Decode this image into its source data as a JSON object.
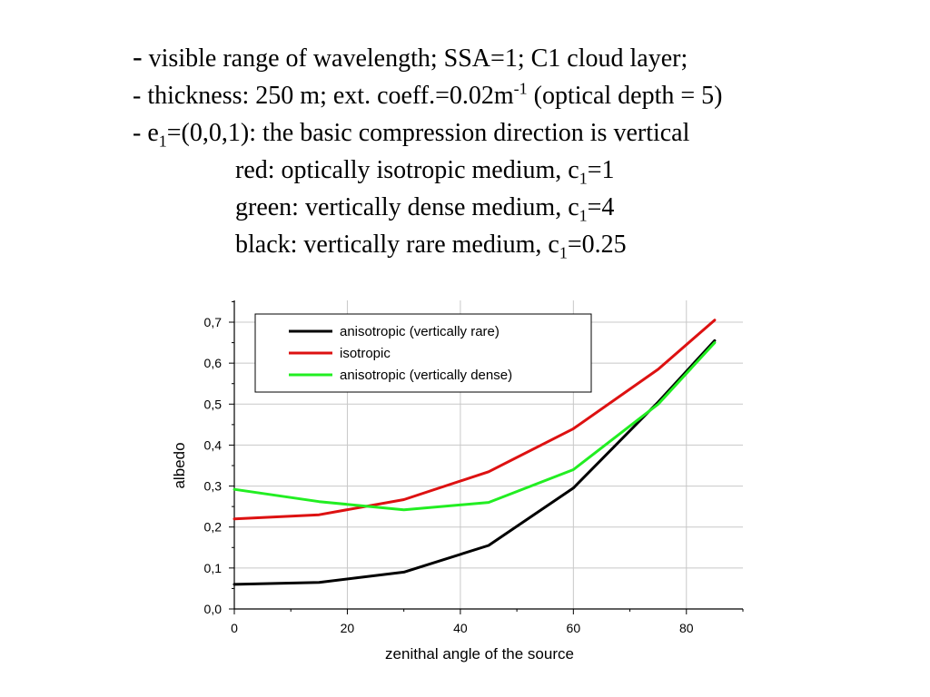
{
  "notes": {
    "l1": {
      "dash": "-",
      "text": " visible range of wavelength; SSA=1; C1 cloud layer;"
    },
    "l2": {
      "a": "- thickness: 250 m; ext. coeff.=0.02m",
      "sup": "-1",
      "b": " (optical depth = 5)"
    },
    "l3": {
      "a": "- e",
      "sub": "1",
      "b": "=(0,0,1): the basic compression direction is vertical"
    },
    "l4": {
      "a": "red: optically isotropic medium, c",
      "sub": "1",
      "b": "=1"
    },
    "l5": {
      "a": "green: vertically dense medium, c",
      "sub": "1",
      "b": "=4"
    },
    "l6": {
      "a": "black: vertically rare medium, c",
      "sub": "1",
      "b": "=0.25"
    }
  },
  "chart_data": {
    "type": "line",
    "xlabel": "zenithal angle of the source",
    "ylabel": "albedo",
    "xlim": [
      0,
      90
    ],
    "ylim": [
      0,
      0.7
    ],
    "xticks": [
      0,
      20,
      40,
      60,
      80
    ],
    "xtick_labels": [
      "0",
      "20",
      "40",
      "60",
      "80"
    ],
    "yticks": [
      0,
      0.1,
      0.2,
      0.3,
      0.4,
      0.5,
      0.6,
      0.7
    ],
    "ytick_labels": [
      "0,0",
      "0,1",
      "0,2",
      "0,3",
      "0,4",
      "0,5",
      "0,6",
      "0,7"
    ],
    "grid": true,
    "legend_position": "top-left",
    "series": [
      {
        "name": "anisotropic (vertically rare)",
        "color": "#000000",
        "x": [
          0,
          15,
          30,
          45,
          60,
          75,
          85
        ],
        "y": [
          0.06,
          0.065,
          0.09,
          0.155,
          0.295,
          0.505,
          0.655
        ]
      },
      {
        "name": "isotropic",
        "color": "#dd1111",
        "x": [
          0,
          15,
          30,
          45,
          60,
          75,
          85
        ],
        "y": [
          0.22,
          0.23,
          0.267,
          0.335,
          0.44,
          0.585,
          0.705
        ]
      },
      {
        "name": "anisotropic (vertically dense)",
        "color": "#22ee22",
        "x": [
          0,
          15,
          30,
          45,
          60,
          75,
          85
        ],
        "y": [
          0.292,
          0.262,
          0.242,
          0.26,
          0.34,
          0.5,
          0.65
        ]
      }
    ]
  }
}
